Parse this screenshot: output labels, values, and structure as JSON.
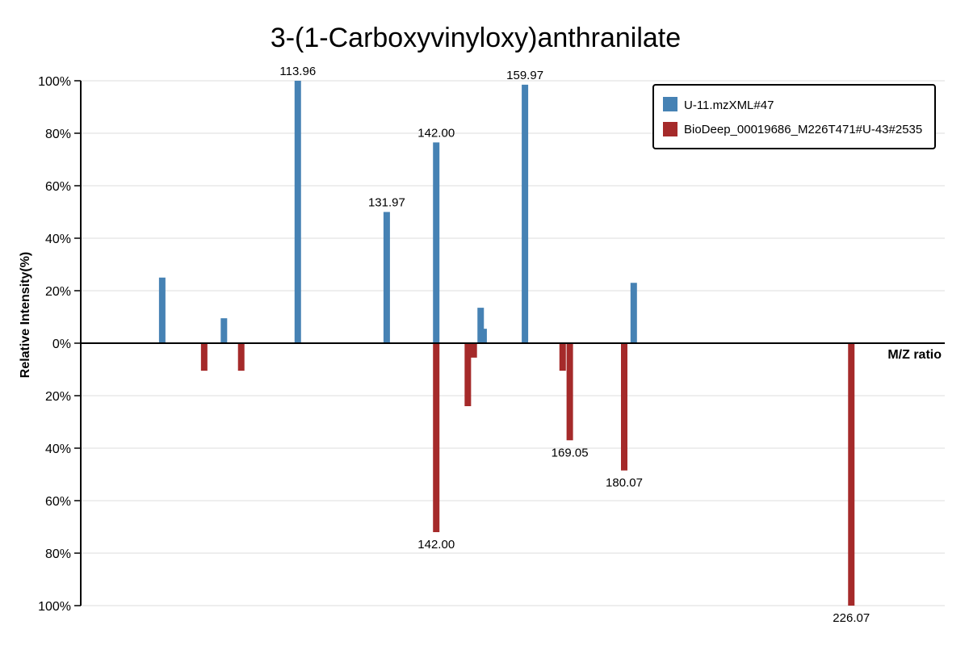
{
  "chart_data": {
    "type": "bar",
    "title": "3-(1-Carboxyvinyloxy)anthranilate",
    "xlabel": "M/Z ratio",
    "ylabel": "Relative Intensity(%)",
    "y_ticks_top": [
      "100%",
      "80%",
      "60%",
      "40%",
      "20%",
      "0%"
    ],
    "y_ticks_bottom": [
      "20%",
      "40%",
      "60%",
      "80%",
      "100%"
    ],
    "ylim": [
      -100,
      100
    ],
    "xlim": [
      70,
      245
    ],
    "grid": true,
    "legend_position": "top-right",
    "series": [
      {
        "name": "U-11.mzXML#47",
        "color": "#4682b4",
        "direction": "up",
        "peaks": [
          {
            "mz": 86.5,
            "intensity": 25,
            "label": ""
          },
          {
            "mz": 99.0,
            "intensity": 9.5,
            "label": ""
          },
          {
            "mz": 113.96,
            "intensity": 100,
            "label": "113.96"
          },
          {
            "mz": 131.97,
            "intensity": 50,
            "label": "131.97"
          },
          {
            "mz": 142.0,
            "intensity": 76.5,
            "label": "142.00"
          },
          {
            "mz": 151.0,
            "intensity": 13.5,
            "label": ""
          },
          {
            "mz": 151.6,
            "intensity": 5.5,
            "label": ""
          },
          {
            "mz": 159.97,
            "intensity": 98.5,
            "label": "159.97"
          },
          {
            "mz": 182.0,
            "intensity": 23,
            "label": ""
          }
        ]
      },
      {
        "name": "BioDeep_00019686_M226T471#U-43#2535",
        "color": "#a52a2a",
        "direction": "down",
        "peaks": [
          {
            "mz": 95.0,
            "intensity": 10.5,
            "label": ""
          },
          {
            "mz": 102.5,
            "intensity": 10.5,
            "label": ""
          },
          {
            "mz": 142.0,
            "intensity": 72,
            "label": "142.00"
          },
          {
            "mz": 148.4,
            "intensity": 24,
            "label": ""
          },
          {
            "mz": 149.6,
            "intensity": 5.5,
            "label": ""
          },
          {
            "mz": 167.6,
            "intensity": 10.5,
            "label": ""
          },
          {
            "mz": 169.05,
            "intensity": 37,
            "label": "169.05"
          },
          {
            "mz": 180.07,
            "intensity": 48.5,
            "label": "180.07"
          },
          {
            "mz": 226.07,
            "intensity": 100,
            "label": "226.07"
          }
        ]
      }
    ]
  }
}
